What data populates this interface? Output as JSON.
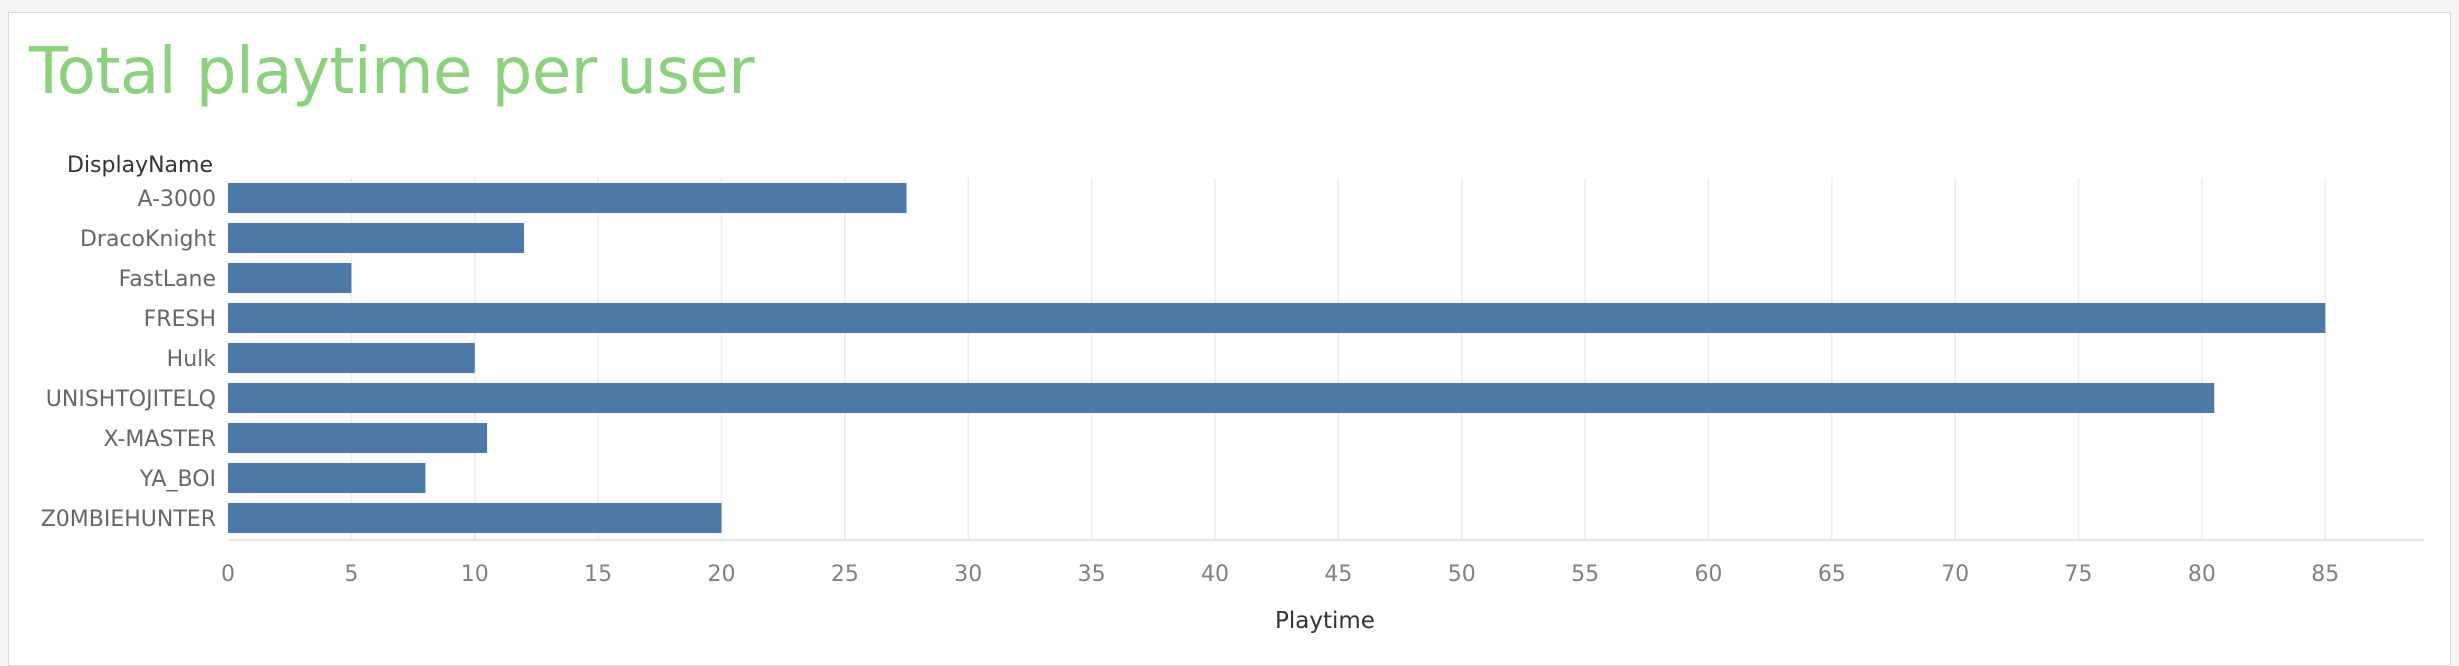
{
  "chart_data": {
    "type": "bar",
    "orientation": "horizontal",
    "title": "Total playtime per user",
    "row_header": "DisplayName",
    "xlabel": "Playtime",
    "ylabel": "",
    "categories": [
      "A-3000",
      "DracoKnight",
      "FastLane",
      "FRESH",
      "Hulk",
      "UNISHTOJITELQ",
      "X-MASTER",
      "YA_BOI",
      "Z0MBIEHUNTER"
    ],
    "values": [
      27.5,
      12,
      5,
      85,
      10,
      80.5,
      10.5,
      8,
      20
    ],
    "xlim": [
      0,
      89
    ],
    "xticks": [
      "0",
      "5",
      "10",
      "15",
      "20",
      "25",
      "30",
      "35",
      "40",
      "45",
      "50",
      "55",
      "60",
      "65",
      "70",
      "75",
      "80",
      "85"
    ],
    "grid": true,
    "colors": {
      "bar": "#4e79a7",
      "title": "#8cd17d"
    }
  }
}
